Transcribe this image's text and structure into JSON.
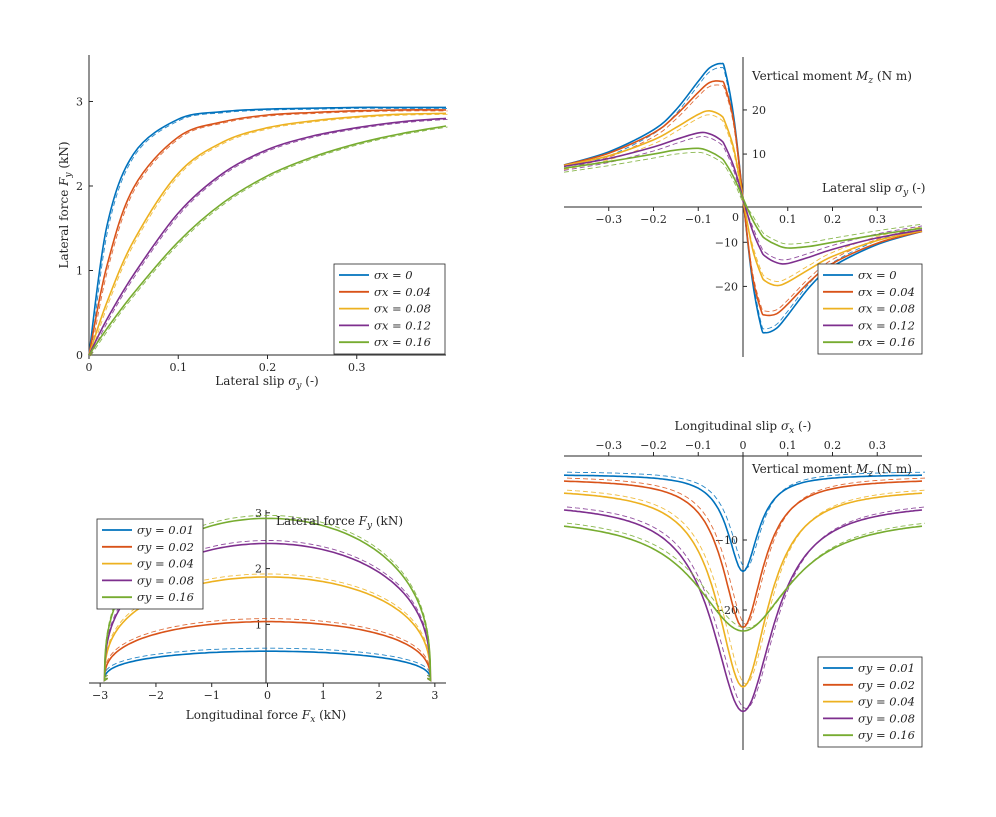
{
  "colors": [
    "#0072BD",
    "#D95319",
    "#EDB120",
    "#7E2F8E",
    "#77AC30"
  ],
  "chart_data": [
    {
      "type": "line",
      "id": "fy-vs-sy",
      "xlabel": "Lateral slip σy (-)",
      "ylabel": "Lateral force Fy (kN)",
      "xlim": [
        0,
        0.4
      ],
      "ylim": [
        0,
        3.55
      ],
      "xticks": [
        "0",
        "0.1",
        "0.2",
        "0.3"
      ],
      "yticks": [
        "0",
        "1",
        "2",
        "3"
      ],
      "legend_position": "bottom-right",
      "series": [
        {
          "name": "σx = 0",
          "x": [
            0,
            0.02,
            0.05,
            0.1,
            0.15,
            0.2,
            0.25,
            0.3,
            0.35,
            0.4
          ],
          "y": [
            0,
            1.52,
            2.38,
            2.79,
            2.88,
            2.91,
            2.92,
            2.93,
            2.93,
            2.93
          ]
        },
        {
          "name": "σx = 0.04",
          "x": [
            0,
            0.02,
            0.05,
            0.1,
            0.15,
            0.2,
            0.25,
            0.3,
            0.35,
            0.4
          ],
          "y": [
            0,
            1.05,
            1.98,
            2.58,
            2.76,
            2.84,
            2.87,
            2.89,
            2.9,
            2.9
          ]
        },
        {
          "name": "σx = 0.08",
          "x": [
            0,
            0.02,
            0.05,
            0.1,
            0.15,
            0.2,
            0.25,
            0.3,
            0.35,
            0.4
          ],
          "y": [
            0,
            0.62,
            1.35,
            2.15,
            2.52,
            2.69,
            2.77,
            2.82,
            2.85,
            2.86
          ]
        },
        {
          "name": "σx = 0.12",
          "x": [
            0,
            0.02,
            0.05,
            0.1,
            0.15,
            0.2,
            0.25,
            0.3,
            0.35,
            0.4
          ],
          "y": [
            0,
            0.42,
            0.95,
            1.68,
            2.15,
            2.43,
            2.59,
            2.69,
            2.76,
            2.8
          ]
        },
        {
          "name": "σx = 0.16",
          "x": [
            0,
            0.02,
            0.05,
            0.1,
            0.15,
            0.2,
            0.25,
            0.3,
            0.35,
            0.4
          ],
          "y": [
            0,
            0.31,
            0.73,
            1.34,
            1.8,
            2.12,
            2.34,
            2.5,
            2.62,
            2.71
          ]
        }
      ]
    },
    {
      "type": "line",
      "id": "mz-vs-sy",
      "xlabel": "Lateral slip σy (-)",
      "ylabel": "Vertical moment Mz (N m)",
      "xlim": [
        -0.4,
        0.4
      ],
      "ylim": [
        -36,
        32
      ],
      "xticks": [
        "−0.3",
        "−0.2",
        "−0.1",
        "0",
        "0.1",
        "0.2",
        "0.3"
      ],
      "yticks": [
        "−20",
        "−10",
        "0",
        "10",
        "20"
      ],
      "legend_position": "bottom-right",
      "series": [
        {
          "name": "σx = 0",
          "x": [
            -0.4,
            -0.3,
            -0.2,
            -0.15,
            -0.1,
            -0.075,
            -0.05,
            -0.04,
            -0.02,
            0,
            0.02,
            0.04,
            0.05,
            0.075,
            0.1,
            0.15,
            0.2,
            0.3,
            0.4
          ],
          "y": [
            7.5,
            10.5,
            15.5,
            20,
            26.5,
            29.5,
            30.5,
            29,
            18,
            0,
            -18,
            -29,
            -30.5,
            -29.5,
            -26.5,
            -20,
            -15.5,
            -10.5,
            -7.5
          ]
        },
        {
          "name": "σx = 0.04",
          "x": [
            -0.4,
            -0.3,
            -0.2,
            -0.15,
            -0.1,
            -0.075,
            -0.05,
            -0.04,
            -0.02,
            0,
            0.02,
            0.04,
            0.05,
            0.075,
            0.1,
            0.15,
            0.2,
            0.3,
            0.4
          ],
          "y": [
            7.5,
            10.2,
            14.8,
            18.8,
            24,
            26.2,
            26.5,
            25.3,
            17,
            0,
            -17,
            -25.3,
            -26.5,
            -26.2,
            -24,
            -18.8,
            -14.8,
            -10.2,
            -7.5
          ]
        },
        {
          "name": "σx = 0.08",
          "x": [
            -0.4,
            -0.3,
            -0.2,
            -0.15,
            -0.1,
            -0.075,
            -0.05,
            -0.04,
            -0.02,
            0,
            0.02,
            0.04,
            0.05,
            0.075,
            0.1,
            0.15,
            0.2,
            0.3,
            0.4
          ],
          "y": [
            7.4,
            9.6,
            13.2,
            16,
            19,
            19.8,
            18.8,
            17.2,
            11,
            0,
            -11,
            -17.2,
            -18.8,
            -19.8,
            -19,
            -16,
            -13.2,
            -9.6,
            -7.4
          ]
        },
        {
          "name": "σx = 0.12",
          "x": [
            -0.4,
            -0.3,
            -0.2,
            -0.15,
            -0.1,
            -0.075,
            -0.05,
            -0.04,
            -0.02,
            0,
            0.02,
            0.04,
            0.05,
            0.075,
            0.1,
            0.15,
            0.2,
            0.3,
            0.4
          ],
          "y": [
            7.2,
            9,
            11.6,
            13.3,
            14.8,
            14.6,
            13.2,
            11.8,
            7,
            0,
            -7,
            -11.8,
            -13.2,
            -14.6,
            -14.8,
            -13.3,
            -11.6,
            -9,
            -7.2
          ]
        },
        {
          "name": "σx = 0.16",
          "x": [
            -0.4,
            -0.3,
            -0.2,
            -0.15,
            -0.1,
            -0.075,
            -0.05,
            -0.04,
            -0.02,
            0,
            0.02,
            0.04,
            0.05,
            0.075,
            0.1,
            0.15,
            0.2,
            0.3,
            0.4
          ],
          "y": [
            6.8,
            8.3,
            10,
            10.9,
            11.3,
            10.6,
            9.2,
            8.1,
            4.6,
            0,
            -4.6,
            -8.1,
            -9.2,
            -10.6,
            -11.3,
            -10.9,
            -10,
            -8.3,
            -6.8
          ]
        }
      ]
    },
    {
      "type": "line",
      "id": "fy-vs-fx",
      "xlabel": "Longitudinal force Fx (kN)",
      "ylabel": "Lateral force Fy (kN)",
      "xlim": [
        -3.2,
        3.2
      ],
      "ylim": [
        -0.05,
        3.05
      ],
      "xticks": [
        "−3",
        "−2",
        "−1",
        "0",
        "1",
        "2",
        "3"
      ],
      "yticks": [
        "1",
        "2",
        "3"
      ],
      "legend_position": "top-left",
      "series": [
        {
          "name": "σy = 0.01",
          "a": 2.92,
          "b": 0.52
        },
        {
          "name": "σy = 0.02",
          "a": 2.92,
          "b": 1.05
        },
        {
          "name": "σy = 0.04",
          "a": 2.92,
          "b": 1.85
        },
        {
          "name": "σy = 0.08",
          "a": 2.92,
          "b": 2.45
        },
        {
          "name": "σy = 0.16",
          "a": 2.92,
          "b": 2.9
        }
      ]
    },
    {
      "type": "line",
      "id": "mz-vs-sx",
      "xlabel": "Longitudinal slip σx (-)",
      "ylabel": "Vertical moment Mz (N m)",
      "xlim": [
        -0.4,
        0.4
      ],
      "ylim": [
        -40,
        2
      ],
      "xticks": [
        "−0.3",
        "−0.2",
        "−0.1",
        "0",
        "0.1",
        "0.2",
        "0.3"
      ],
      "yticks": [
        "−20",
        "−10"
      ],
      "legend_position": "bottom-right",
      "series": [
        {
          "name": "σy = 0.01",
          "peak": -14.5,
          "width": 0.045,
          "tail": -0.6
        },
        {
          "name": "σy = 0.02",
          "peak": -22.5,
          "width": 0.06,
          "tail": -1.2
        },
        {
          "name": "σy = 0.04",
          "peak": -31,
          "width": 0.075,
          "tail": -2.5
        },
        {
          "name": "σy = 0.08",
          "peak": -34.5,
          "width": 0.09,
          "tail": -4.5
        },
        {
          "name": "σy = 0.16",
          "peak": -23,
          "width": 0.14,
          "tail": -6.5
        }
      ]
    }
  ]
}
